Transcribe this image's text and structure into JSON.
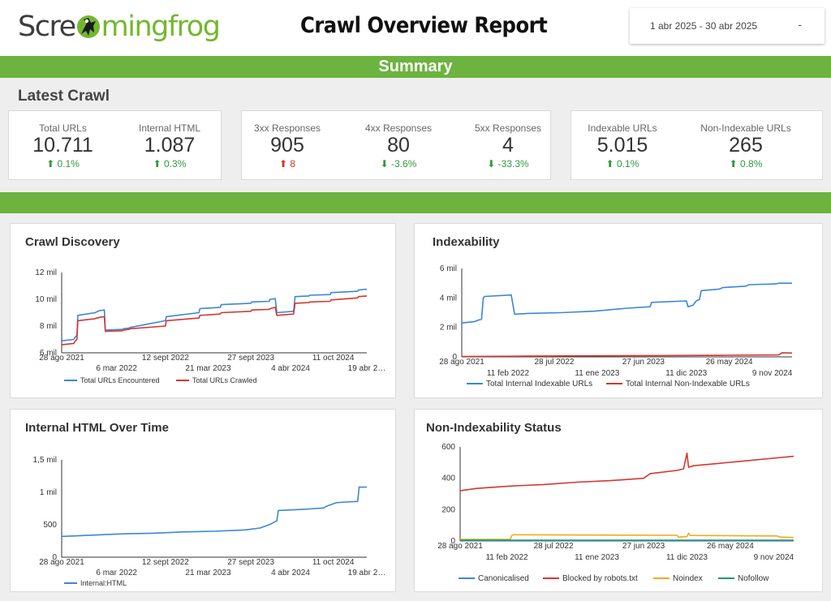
{
  "header": {
    "logo_left": "Scre",
    "logo_right": "mingfrog",
    "title": "Crawl Overview Report",
    "date_range": "1 abr 2025 - 30 abr 2025",
    "date_caret": "-"
  },
  "summary": {
    "band_label": "Summary",
    "section_title": "Latest Crawl"
  },
  "kpis": [
    {
      "label": "Total URLs",
      "value": "10.711",
      "delta": "⬆ 0.1%"
    },
    {
      "label": "Internal HTML",
      "value": "1.087",
      "delta": "⬆ 0.3%"
    },
    {
      "label": "3xx Responses",
      "value": "905",
      "delta": "⬆ 8"
    },
    {
      "label": "4xx Responses",
      "value": "80",
      "delta": "⬇ -3.6%"
    },
    {
      "label": "5xx Responses",
      "value": "4",
      "delta": "⬇ -33.3%"
    },
    {
      "label": "Indexable URLs",
      "value": "5.015",
      "delta": "⬆ 0.1%"
    },
    {
      "label": "Non-Indexable URLs",
      "value": "265",
      "delta": "⬆ 0.8%"
    }
  ],
  "colors": {
    "brand_green": "#6cb33f",
    "blue": "#3b86d8",
    "red": "#d6362f",
    "orange": "#f4a81d",
    "teal": "#1b9a6a",
    "positive": "#2e9a3c",
    "negative": "#d93025"
  },
  "chart_data": [
    {
      "title": "Crawl Discovery",
      "type": "line",
      "ylim": [
        6000,
        12000
      ],
      "yticks": [
        6000,
        8000,
        10000,
        12000
      ],
      "ytick_labels": [
        "6 mil",
        "8 mil",
        "10 mil",
        "12 mil"
      ],
      "xlim": [
        0,
        100
      ],
      "xticks_top": [
        {
          "x": 0,
          "label": "28 ago 2021"
        },
        {
          "x": 34,
          "label": "12 sept 2022"
        },
        {
          "x": 62,
          "label": "27 sept 2023"
        },
        {
          "x": 89,
          "label": "11 oct 2024"
        }
      ],
      "xticks_bottom": [
        {
          "x": 18,
          "label": "6 mar 2022"
        },
        {
          "x": 48,
          "label": "21 mar 2023"
        },
        {
          "x": 75,
          "label": "4 abr 2024"
        },
        {
          "x": 100,
          "label": "19 abr 2…"
        }
      ],
      "series": [
        {
          "name": "Total URLs Encountered",
          "color": "#3b86d8",
          "x": [
            0,
            4,
            4.5,
            5,
            5.3,
            11,
            11.3,
            12,
            12.3,
            14,
            14.3,
            20,
            20.3,
            22,
            22.5,
            34,
            34.3,
            45,
            45.3,
            52,
            52.3,
            62,
            62.3,
            68,
            68.3,
            70,
            70.5,
            76,
            76.5,
            81,
            81.3,
            88,
            88.3,
            97,
            97.3,
            100
          ],
          "y": [
            6900,
            7000,
            7200,
            7300,
            8800,
            9000,
            9050,
            9100,
            9150,
            9200,
            7700,
            7750,
            7800,
            7850,
            7900,
            8400,
            8700,
            9000,
            9300,
            9400,
            9600,
            9700,
            9800,
            9850,
            10000,
            10050,
            9000,
            9100,
            10200,
            10250,
            10300,
            10350,
            10500,
            10600,
            10700,
            10750
          ]
        },
        {
          "name": "Total URLs Crawled",
          "color": "#d6362f",
          "x": [
            0,
            4,
            4.5,
            5,
            5.3,
            11,
            11.3,
            12,
            12.3,
            14,
            14.3,
            20,
            20.3,
            22,
            22.5,
            34,
            34.3,
            45,
            45.3,
            52,
            52.3,
            62,
            62.3,
            68,
            68.3,
            70,
            70.5,
            76,
            76.5,
            81,
            81.3,
            88,
            88.3,
            97,
            97.3,
            100
          ],
          "y": [
            6600,
            6700,
            6900,
            7000,
            8400,
            8550,
            8600,
            8600,
            8650,
            8700,
            7600,
            7650,
            7700,
            7750,
            7800,
            8000,
            8400,
            8600,
            8800,
            8900,
            9000,
            9100,
            9200,
            9250,
            9300,
            9400,
            8800,
            8900,
            9700,
            9750,
            9800,
            9850,
            9950,
            10100,
            10200,
            10250
          ]
        }
      ]
    },
    {
      "title": "Indexability",
      "type": "line",
      "ylim": [
        0,
        6000
      ],
      "yticks": [
        0,
        2000,
        4000,
        6000
      ],
      "ytick_labels": [
        "0",
        "2 mil",
        "4 mil",
        "6 mil"
      ],
      "xlim": [
        0,
        100
      ],
      "xticks_top": [
        {
          "x": 0,
          "label": "28 ago 2021"
        },
        {
          "x": 28,
          "label": "28 jul 2022"
        },
        {
          "x": 55,
          "label": "27 jun 2023"
        },
        {
          "x": 81,
          "label": "26 may 2024"
        }
      ],
      "xticks_bottom": [
        {
          "x": 14,
          "label": "11 feb 2022"
        },
        {
          "x": 41,
          "label": "11 ene 2023"
        },
        {
          "x": 68,
          "label": "11 dic 2023"
        },
        {
          "x": 94,
          "label": "9 nov 2024"
        }
      ],
      "series": [
        {
          "name": "Total Internal Indexable URLs",
          "color": "#3b86d8",
          "x": [
            0,
            4,
            5,
            6,
            6.5,
            7,
            15,
            16,
            16.5,
            20,
            30,
            40,
            50,
            57,
            57.5,
            68,
            68.5,
            70,
            71,
            72,
            72.5,
            78,
            79,
            86,
            87,
            95,
            96,
            100
          ],
          "y": [
            2300,
            2400,
            2500,
            2550,
            4000,
            4100,
            4200,
            2900,
            2900,
            2950,
            3000,
            3100,
            3300,
            3400,
            3700,
            3800,
            3400,
            3500,
            3800,
            3900,
            4500,
            4600,
            4700,
            4800,
            4900,
            4950,
            5000,
            5000
          ]
        },
        {
          "name": "Total Internal Non-Indexable URLs",
          "color": "#d6362f",
          "x": [
            0,
            20,
            40,
            60,
            80,
            96,
            97,
            100
          ],
          "y": [
            30,
            50,
            70,
            90,
            110,
            130,
            280,
            260
          ]
        }
      ]
    },
    {
      "title": "Internal HTML Over Time",
      "type": "line",
      "ylim": [
        0,
        1500
      ],
      "yticks": [
        0,
        500,
        1000,
        1500
      ],
      "ytick_labels": [
        "0",
        "500",
        "1 mil",
        "1,5 mil"
      ],
      "xlim": [
        0,
        100
      ],
      "xticks_top": [
        {
          "x": 0,
          "label": "28 ago 2021"
        },
        {
          "x": 34,
          "label": "12 sept 2022"
        },
        {
          "x": 62,
          "label": "27 sept 2023"
        },
        {
          "x": 89,
          "label": "11 oct 2024"
        }
      ],
      "xticks_bottom": [
        {
          "x": 18,
          "label": "6 mar 2022"
        },
        {
          "x": 48,
          "label": "21 mar 2023"
        },
        {
          "x": 75,
          "label": "4 abr 2024"
        },
        {
          "x": 100,
          "label": "19 abr 2…"
        }
      ],
      "series": [
        {
          "name": "Internal:HTML",
          "color": "#3b86d8",
          "x": [
            0,
            10,
            20,
            30,
            40,
            50,
            60,
            65,
            68,
            70.5,
            71,
            80,
            86,
            86.5,
            90,
            93,
            97,
            97.5,
            100
          ],
          "y": [
            320,
            340,
            360,
            370,
            390,
            400,
            420,
            450,
            500,
            560,
            720,
            740,
            760,
            780,
            840,
            850,
            860,
            1080,
            1080
          ]
        }
      ]
    },
    {
      "title": "Non-Indexability Status",
      "type": "line",
      "ylim": [
        0,
        600
      ],
      "yticks": [
        0,
        200,
        400,
        600
      ],
      "ytick_labels": [
        "0",
        "200",
        "400",
        "600"
      ],
      "xlim": [
        0,
        100
      ],
      "xticks_top": [
        {
          "x": 0,
          "label": "28 ago 2021"
        },
        {
          "x": 28,
          "label": "28 jul 2022"
        },
        {
          "x": 55,
          "label": "27 jun 2023"
        },
        {
          "x": 81,
          "label": "26 may 2024"
        }
      ],
      "xticks_bottom": [
        {
          "x": 14,
          "label": "11 feb 2022"
        },
        {
          "x": 41,
          "label": "11 ene 2023"
        },
        {
          "x": 68,
          "label": "11 dic 2023"
        },
        {
          "x": 94,
          "label": "9 nov 2024"
        }
      ],
      "series": [
        {
          "name": "Canonicalised",
          "color": "#3b86d8",
          "x": [
            0,
            50,
            100
          ],
          "y": [
            3,
            3,
            3
          ]
        },
        {
          "name": "Blocked by robots.txt",
          "color": "#d6362f",
          "x": [
            0,
            5,
            15,
            25,
            35,
            45,
            55,
            57,
            65,
            67,
            68,
            68.5,
            70,
            75,
            85,
            95,
            100
          ],
          "y": [
            320,
            335,
            350,
            360,
            375,
            385,
            400,
            430,
            450,
            460,
            560,
            470,
            480,
            490,
            510,
            530,
            540
          ]
        },
        {
          "name": "Noindex",
          "color": "#f4a81d",
          "x": [
            0,
            15,
            15.5,
            16,
            40,
            65,
            65.5,
            68,
            68.5,
            69,
            95,
            96,
            100
          ],
          "y": [
            10,
            10,
            35,
            40,
            38,
            36,
            25,
            28,
            50,
            35,
            32,
            25,
            22
          ]
        },
        {
          "name": "Nofollow",
          "color": "#1b9a6a",
          "x": [
            0,
            50,
            100
          ],
          "y": [
            5,
            5,
            5
          ]
        }
      ]
    }
  ]
}
